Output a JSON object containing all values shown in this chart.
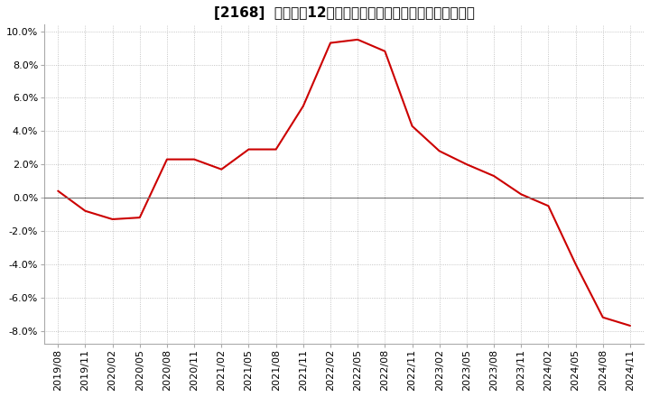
{
  "title": "[2168]  売上高の12か月移動合計の対前年同期増減率の推移",
  "line_color": "#cc0000",
  "background_color": "#ffffff",
  "grid_color": "#999999",
  "zero_line_color": "#777777",
  "border_color": "#aaaaaa",
  "ylim": [
    -0.088,
    0.104
  ],
  "yticks": [
    -0.08,
    -0.06,
    -0.04,
    -0.02,
    0.0,
    0.02,
    0.04,
    0.06,
    0.08,
    0.1
  ],
  "dates": [
    "2019/08",
    "2019/11",
    "2020/02",
    "2020/05",
    "2020/08",
    "2020/11",
    "2021/02",
    "2021/05",
    "2021/08",
    "2021/11",
    "2022/02",
    "2022/05",
    "2022/08",
    "2022/11",
    "2023/02",
    "2023/05",
    "2023/08",
    "2023/11",
    "2024/02",
    "2024/05",
    "2024/08",
    "2024/11"
  ],
  "values": [
    0.004,
    -0.008,
    -0.013,
    -0.012,
    0.023,
    0.023,
    0.017,
    0.029,
    0.029,
    0.055,
    0.093,
    0.095,
    0.088,
    0.043,
    0.028,
    0.02,
    0.013,
    0.002,
    -0.005,
    -0.04,
    -0.072,
    -0.077
  ],
  "title_fontsize": 11,
  "tick_fontsize": 8,
  "line_width": 1.5
}
